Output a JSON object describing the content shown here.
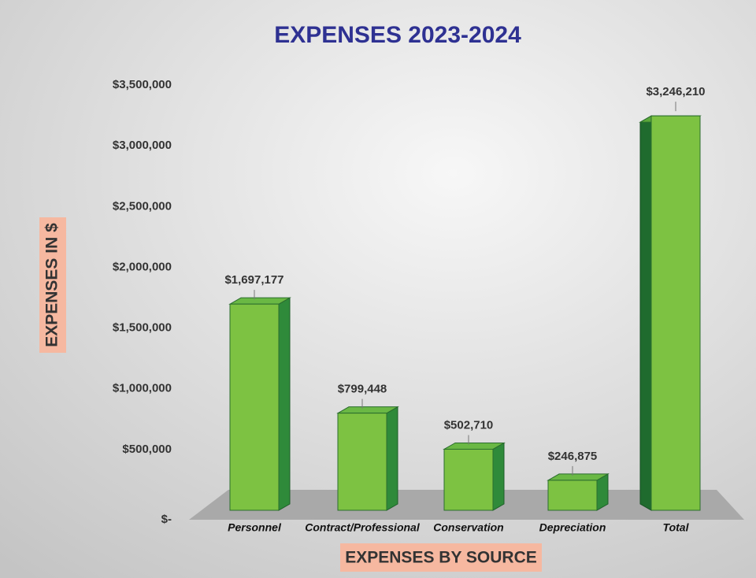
{
  "chart_data": {
    "type": "bar3d",
    "title": "EXPENSES 2023-2024",
    "x_label": "EXPENSES BY SOURCE",
    "y_label": "EXPENSES IN $",
    "categories": [
      "Personnel",
      "Contract/Professional",
      "Conservation",
      "Depreciation",
      "Total"
    ],
    "values": [
      1697177,
      799448,
      502710,
      246875,
      3246210
    ],
    "value_labels": [
      "$1,697,177",
      "$799,448",
      "$502,710",
      "$246,875",
      "$3,246,210"
    ],
    "color": "#7dc242",
    "ylim": [
      0,
      3500000
    ],
    "yticks": [
      {
        "value": 0,
        "label": "$-"
      },
      {
        "value": 500000,
        "label": "$500,000"
      },
      {
        "value": 1000000,
        "label": "$1,000,000"
      },
      {
        "value": 1500000,
        "label": "$1,500,000"
      },
      {
        "value": 2000000,
        "label": "$2,000,000"
      },
      {
        "value": 2500000,
        "label": "$2,500,000"
      },
      {
        "value": 3000000,
        "label": "$3,000,000"
      },
      {
        "value": 3500000,
        "label": "$3,500,000"
      }
    ],
    "grid": false
  }
}
